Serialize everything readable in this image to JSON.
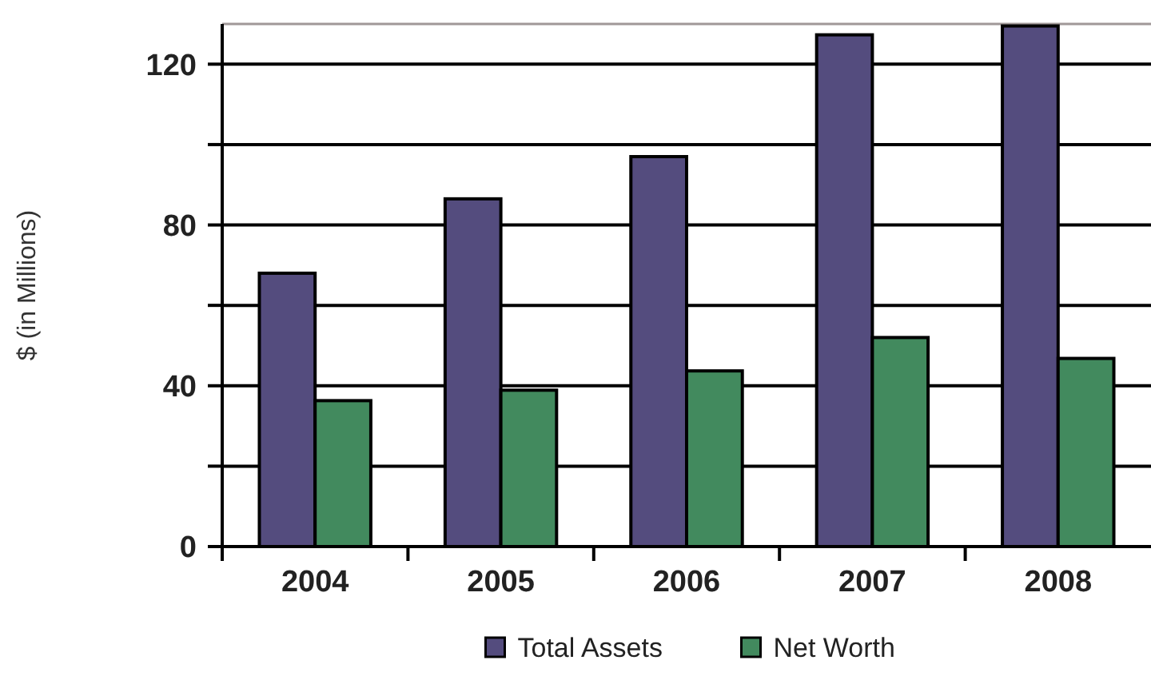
{
  "chart_data": {
    "type": "bar",
    "ylabel": "$ (in Millions)",
    "categories": [
      "2004",
      "2005",
      "2006",
      "2007",
      "2008"
    ],
    "series": [
      {
        "name": "Total Assets",
        "color": "#544c7e",
        "values": [
          68,
          86.5,
          97,
          127.3,
          129.5
        ]
      },
      {
        "name": "Net Worth",
        "color": "#428a5e",
        "values": [
          36.3,
          38.9,
          43.7,
          52,
          46.8
        ]
      }
    ],
    "ylim": [
      0,
      130
    ],
    "yticks": [
      0,
      {
        "value": 20,
        "label": null
      },
      40,
      {
        "value": 60,
        "label": null
      },
      80,
      {
        "value": 100,
        "label": null
      },
      120
    ],
    "grid": "y",
    "legend": "bottom"
  }
}
